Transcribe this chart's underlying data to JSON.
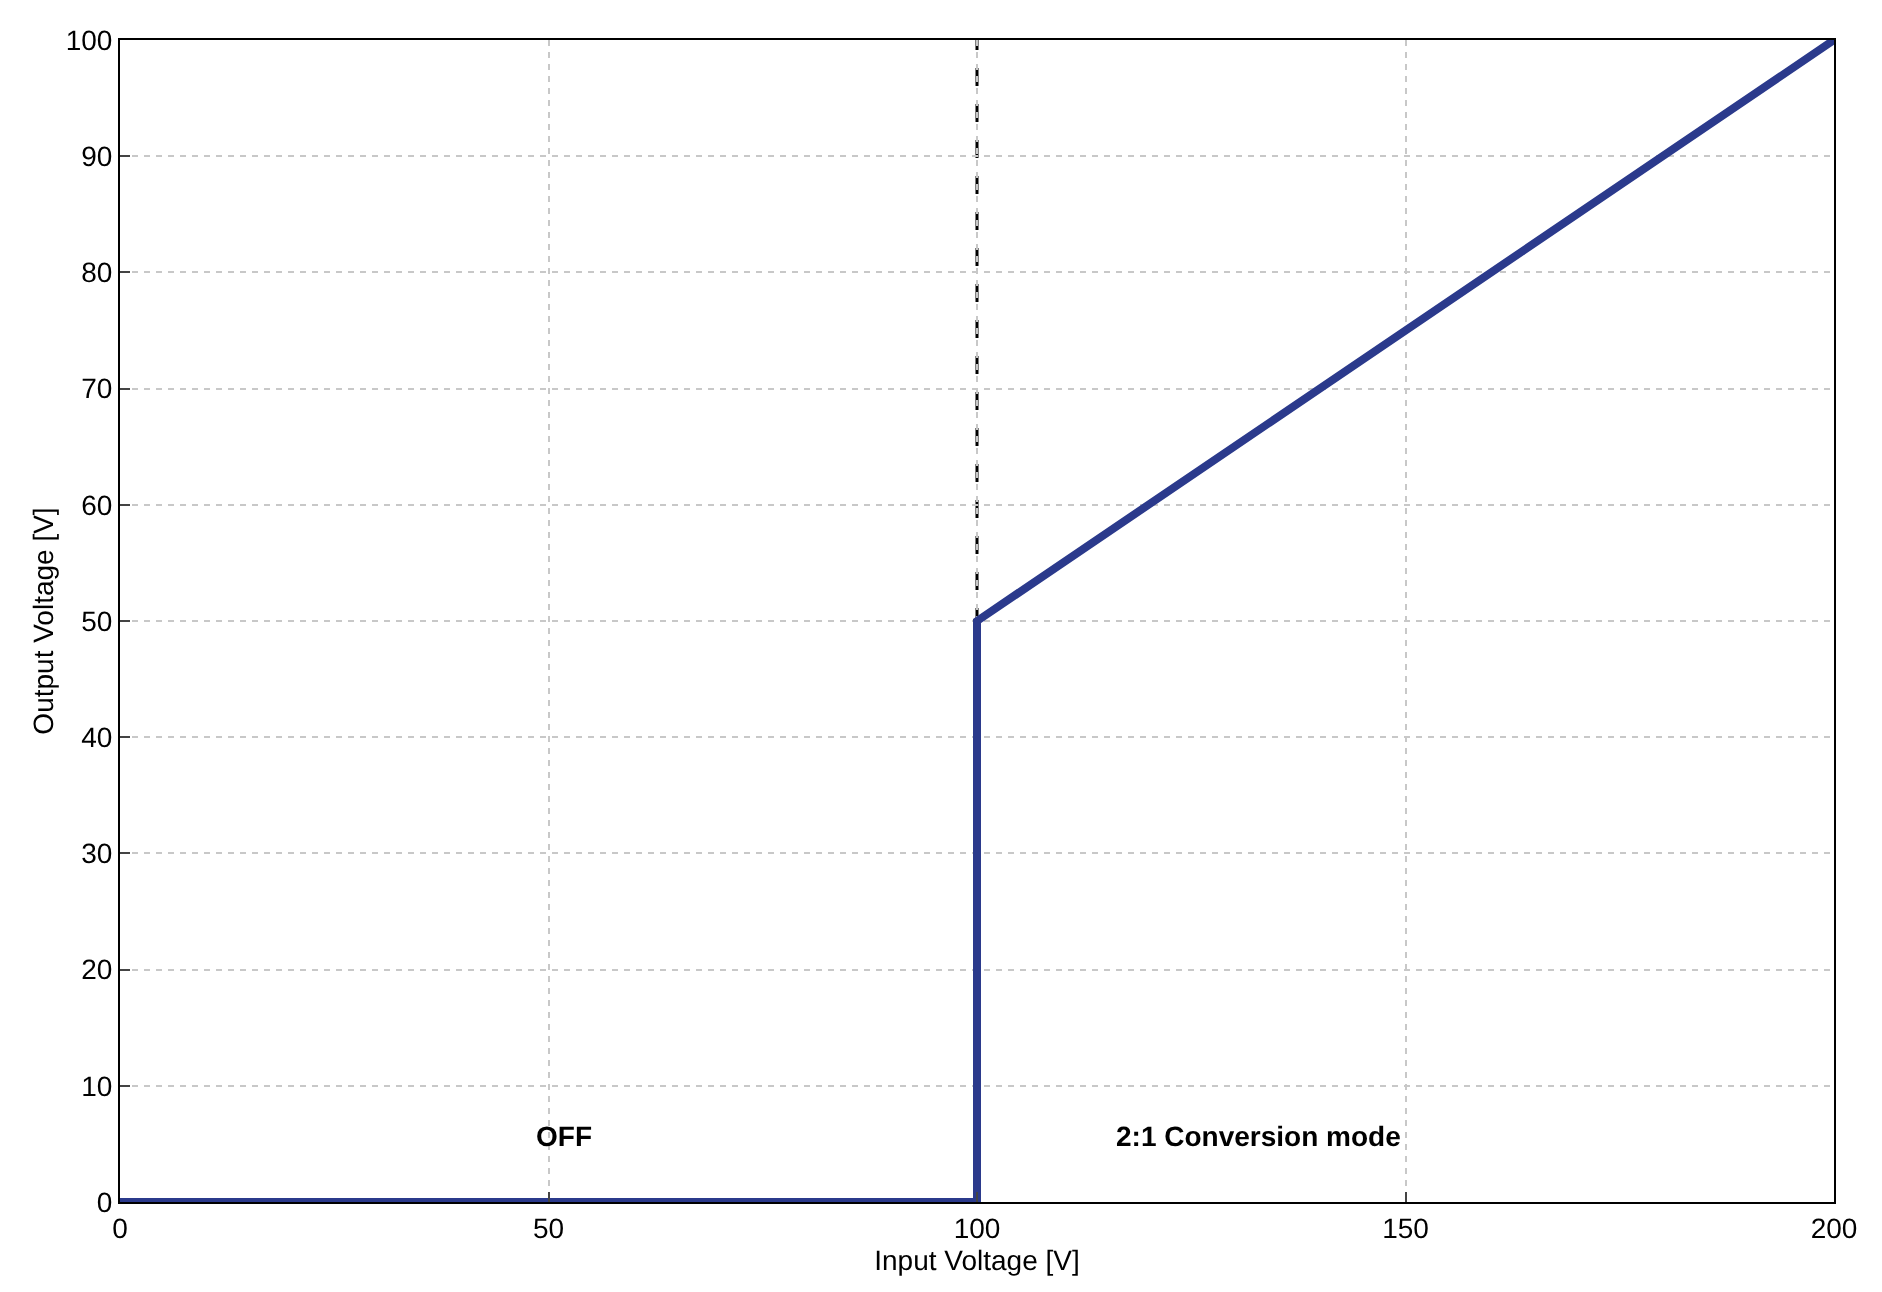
{
  "chart_data": {
    "type": "line",
    "xlabel": "Input Voltage [V]",
    "ylabel": "Output Voltage [V]",
    "x": [
      0,
      100,
      100,
      200
    ],
    "values": [
      0,
      0,
      50,
      100
    ],
    "color": "#2b3a8c",
    "line_style": "solid",
    "marker": "none",
    "xlim": [
      0,
      200
    ],
    "xticks": [
      0,
      50,
      100,
      150,
      200
    ],
    "ylim": [
      0,
      100
    ],
    "yticks": [
      0,
      10,
      20,
      30,
      40,
      50,
      60,
      70,
      80,
      90,
      100
    ],
    "grid": true,
    "ref_lines": [
      {
        "axis": "x",
        "value": 100,
        "color": "#000000",
        "line_style": "dashed"
      }
    ],
    "annotations": [
      "OFF",
      "2:1 Conversion mode"
    ]
  }
}
